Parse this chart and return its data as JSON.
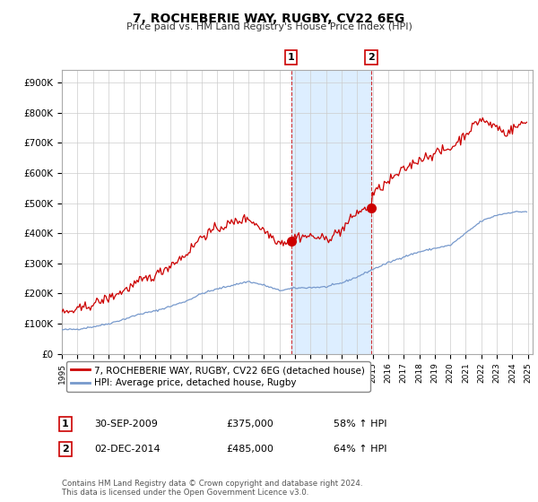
{
  "title": "7, ROCHEBERIE WAY, RUGBY, CV22 6EG",
  "subtitle": "Price paid vs. HM Land Registry's House Price Index (HPI)",
  "ylabel_ticks": [
    "£0",
    "£100K",
    "£200K",
    "£300K",
    "£400K",
    "£500K",
    "£600K",
    "£700K",
    "£800K",
    "£900K"
  ],
  "ytick_values": [
    0,
    100000,
    200000,
    300000,
    400000,
    500000,
    600000,
    700000,
    800000,
    900000
  ],
  "ylim": [
    0,
    940000
  ],
  "xlim_start": 1995.0,
  "xlim_end": 2025.3,
  "transaction1": {
    "date_num": 2009.75,
    "price": 375000,
    "label": "1"
  },
  "transaction2": {
    "date_num": 2014.92,
    "price": 485000,
    "label": "2"
  },
  "red_line_color": "#cc0000",
  "blue_line_color": "#7799cc",
  "shaded_color": "#ddeeff",
  "legend_label_red": "7, ROCHEBERIE WAY, RUGBY, CV22 6EG (detached house)",
  "legend_label_blue": "HPI: Average price, detached house, Rugby",
  "annotation1_date": "30-SEP-2009",
  "annotation1_price": "£375,000",
  "annotation1_hpi": "58% ↑ HPI",
  "annotation2_date": "02-DEC-2014",
  "annotation2_price": "£485,000",
  "annotation2_hpi": "64% ↑ HPI",
  "footnote": "Contains HM Land Registry data © Crown copyright and database right 2024.\nThis data is licensed under the Open Government Licence v3.0."
}
